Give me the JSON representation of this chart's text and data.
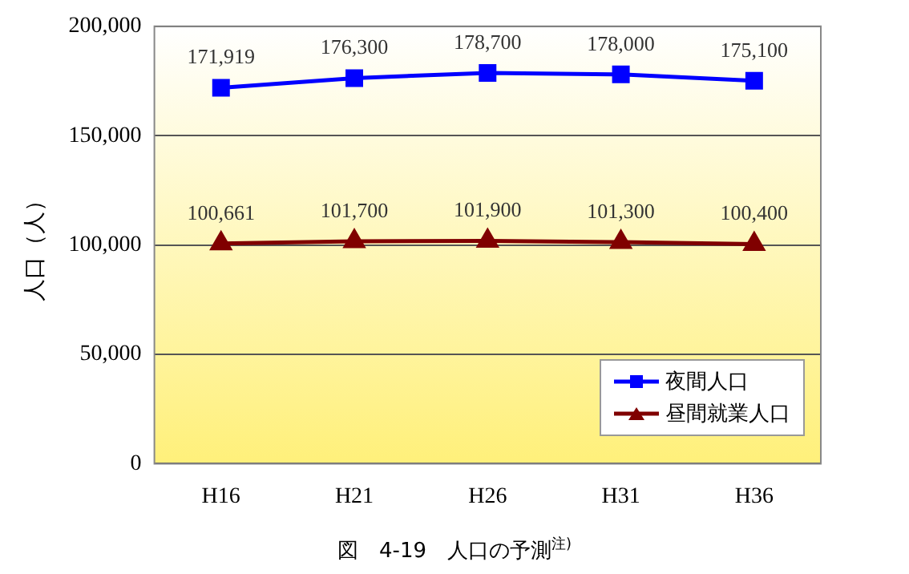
{
  "chart_data": {
    "type": "line",
    "title": "図　4-19　人口の予測$^{注)}$",
    "ylabel": "人口（人）",
    "categories": [
      "H16",
      "H21",
      "H26",
      "H31",
      "H36"
    ],
    "series": [
      {
        "name": "夜間人口",
        "color": "#0000ff",
        "marker": "square",
        "values": [
          171919,
          176300,
          178700,
          178000,
          175100
        ],
        "value_labels": [
          "171,919",
          "176,300",
          "178,700",
          "178,000",
          "175,100"
        ]
      },
      {
        "name": "昼間就業人口",
        "color": "#800000",
        "marker": "triangle",
        "values": [
          100661,
          101700,
          101900,
          101300,
          100400
        ],
        "value_labels": [
          "100,661",
          "101,700",
          "101,900",
          "101,300",
          "100,400"
        ]
      }
    ],
    "ylim": [
      0,
      200000
    ],
    "yticks": [
      0,
      {
        "value": 50000,
        "label": "50,000"
      },
      {
        "value": 100000,
        "label": "100,000"
      },
      {
        "value": 150000,
        "label": "150,000"
      },
      {
        "value": 200000,
        "label": "200,000"
      }
    ],
    "grid": "y",
    "legend": "bottom right"
  }
}
